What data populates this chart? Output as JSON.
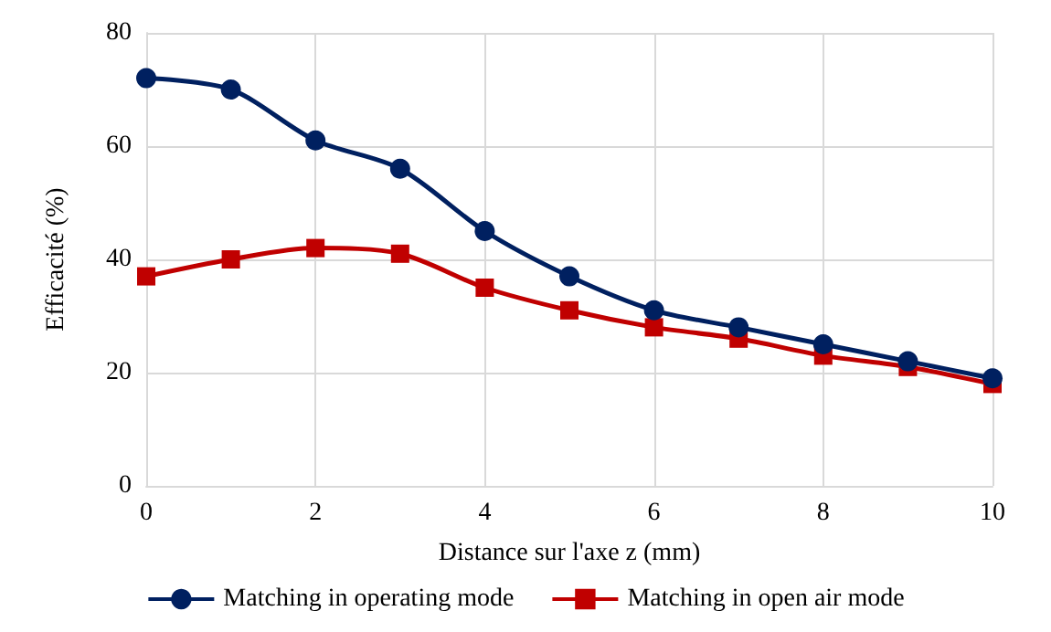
{
  "chart_data": {
    "type": "line",
    "xlabel": "Distance sur l'axe z (mm)",
    "ylabel": "Efficacité (%)",
    "x": [
      0,
      1,
      2,
      3,
      4,
      5,
      6,
      7,
      8,
      9,
      10
    ],
    "series": [
      {
        "name": "Matching in operating mode",
        "color": "#002060",
        "marker": "circle",
        "values": [
          72,
          70,
          61,
          56,
          45,
          37,
          31,
          28,
          25,
          22,
          19
        ]
      },
      {
        "name": "Matching in open air mode",
        "color": "#c00000",
        "marker": "square",
        "values": [
          37,
          40,
          42,
          41,
          35,
          31,
          28,
          26,
          23,
          21,
          18
        ]
      }
    ],
    "xlim": [
      0,
      10
    ],
    "xticks": [
      0,
      2,
      4,
      6,
      8,
      10
    ],
    "ylim": [
      0,
      80
    ],
    "yticks": [
      0,
      20,
      40,
      60,
      80
    ],
    "grid": true,
    "legend": "bottom",
    "line_style": "solid"
  }
}
